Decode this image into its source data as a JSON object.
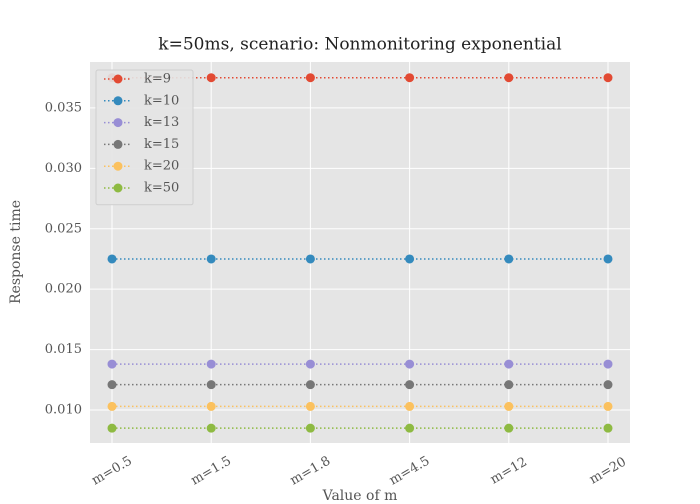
{
  "chart_data": {
    "type": "line",
    "title": "k=50ms, scenario: Nonmonitoring exponential",
    "x_label": "Value of m",
    "y_label": "Response time",
    "categories": [
      "m=0.5",
      "m=1.5",
      "m=1.8",
      "m=4.5",
      "m=12",
      "m=20"
    ],
    "series": [
      {
        "name": "k=9",
        "color": "#E24A33",
        "values": [
          0.0375,
          0.0375,
          0.0375,
          0.0375,
          0.0375,
          0.0375
        ]
      },
      {
        "name": "k=10",
        "color": "#348ABD",
        "values": [
          0.0225,
          0.0225,
          0.0225,
          0.0225,
          0.0225,
          0.0225
        ]
      },
      {
        "name": "k=13",
        "color": "#988ED5",
        "values": [
          0.0138,
          0.0138,
          0.0138,
          0.0138,
          0.0138,
          0.0138
        ]
      },
      {
        "name": "k=15",
        "color": "#777777",
        "values": [
          0.0121,
          0.0121,
          0.0121,
          0.0121,
          0.0121,
          0.0121
        ]
      },
      {
        "name": "k=20",
        "color": "#FBC15E",
        "values": [
          0.0103,
          0.0103,
          0.0103,
          0.0103,
          0.0103,
          0.0103
        ]
      },
      {
        "name": "k=50",
        "color": "#8EBA42",
        "values": [
          0.0085,
          0.0085,
          0.0085,
          0.0085,
          0.0085,
          0.0085
        ]
      }
    ],
    "ylim": [
      0.00727,
      0.0388
    ],
    "yticks": [
      {
        "value": 0.01,
        "label": "0.010"
      },
      0.015,
      {
        "value": 0.02,
        "label": "0.020"
      },
      0.025,
      {
        "value": 0.03,
        "label": "0.030"
      },
      0.035
    ],
    "grid": true,
    "legend": "upper-left"
  }
}
